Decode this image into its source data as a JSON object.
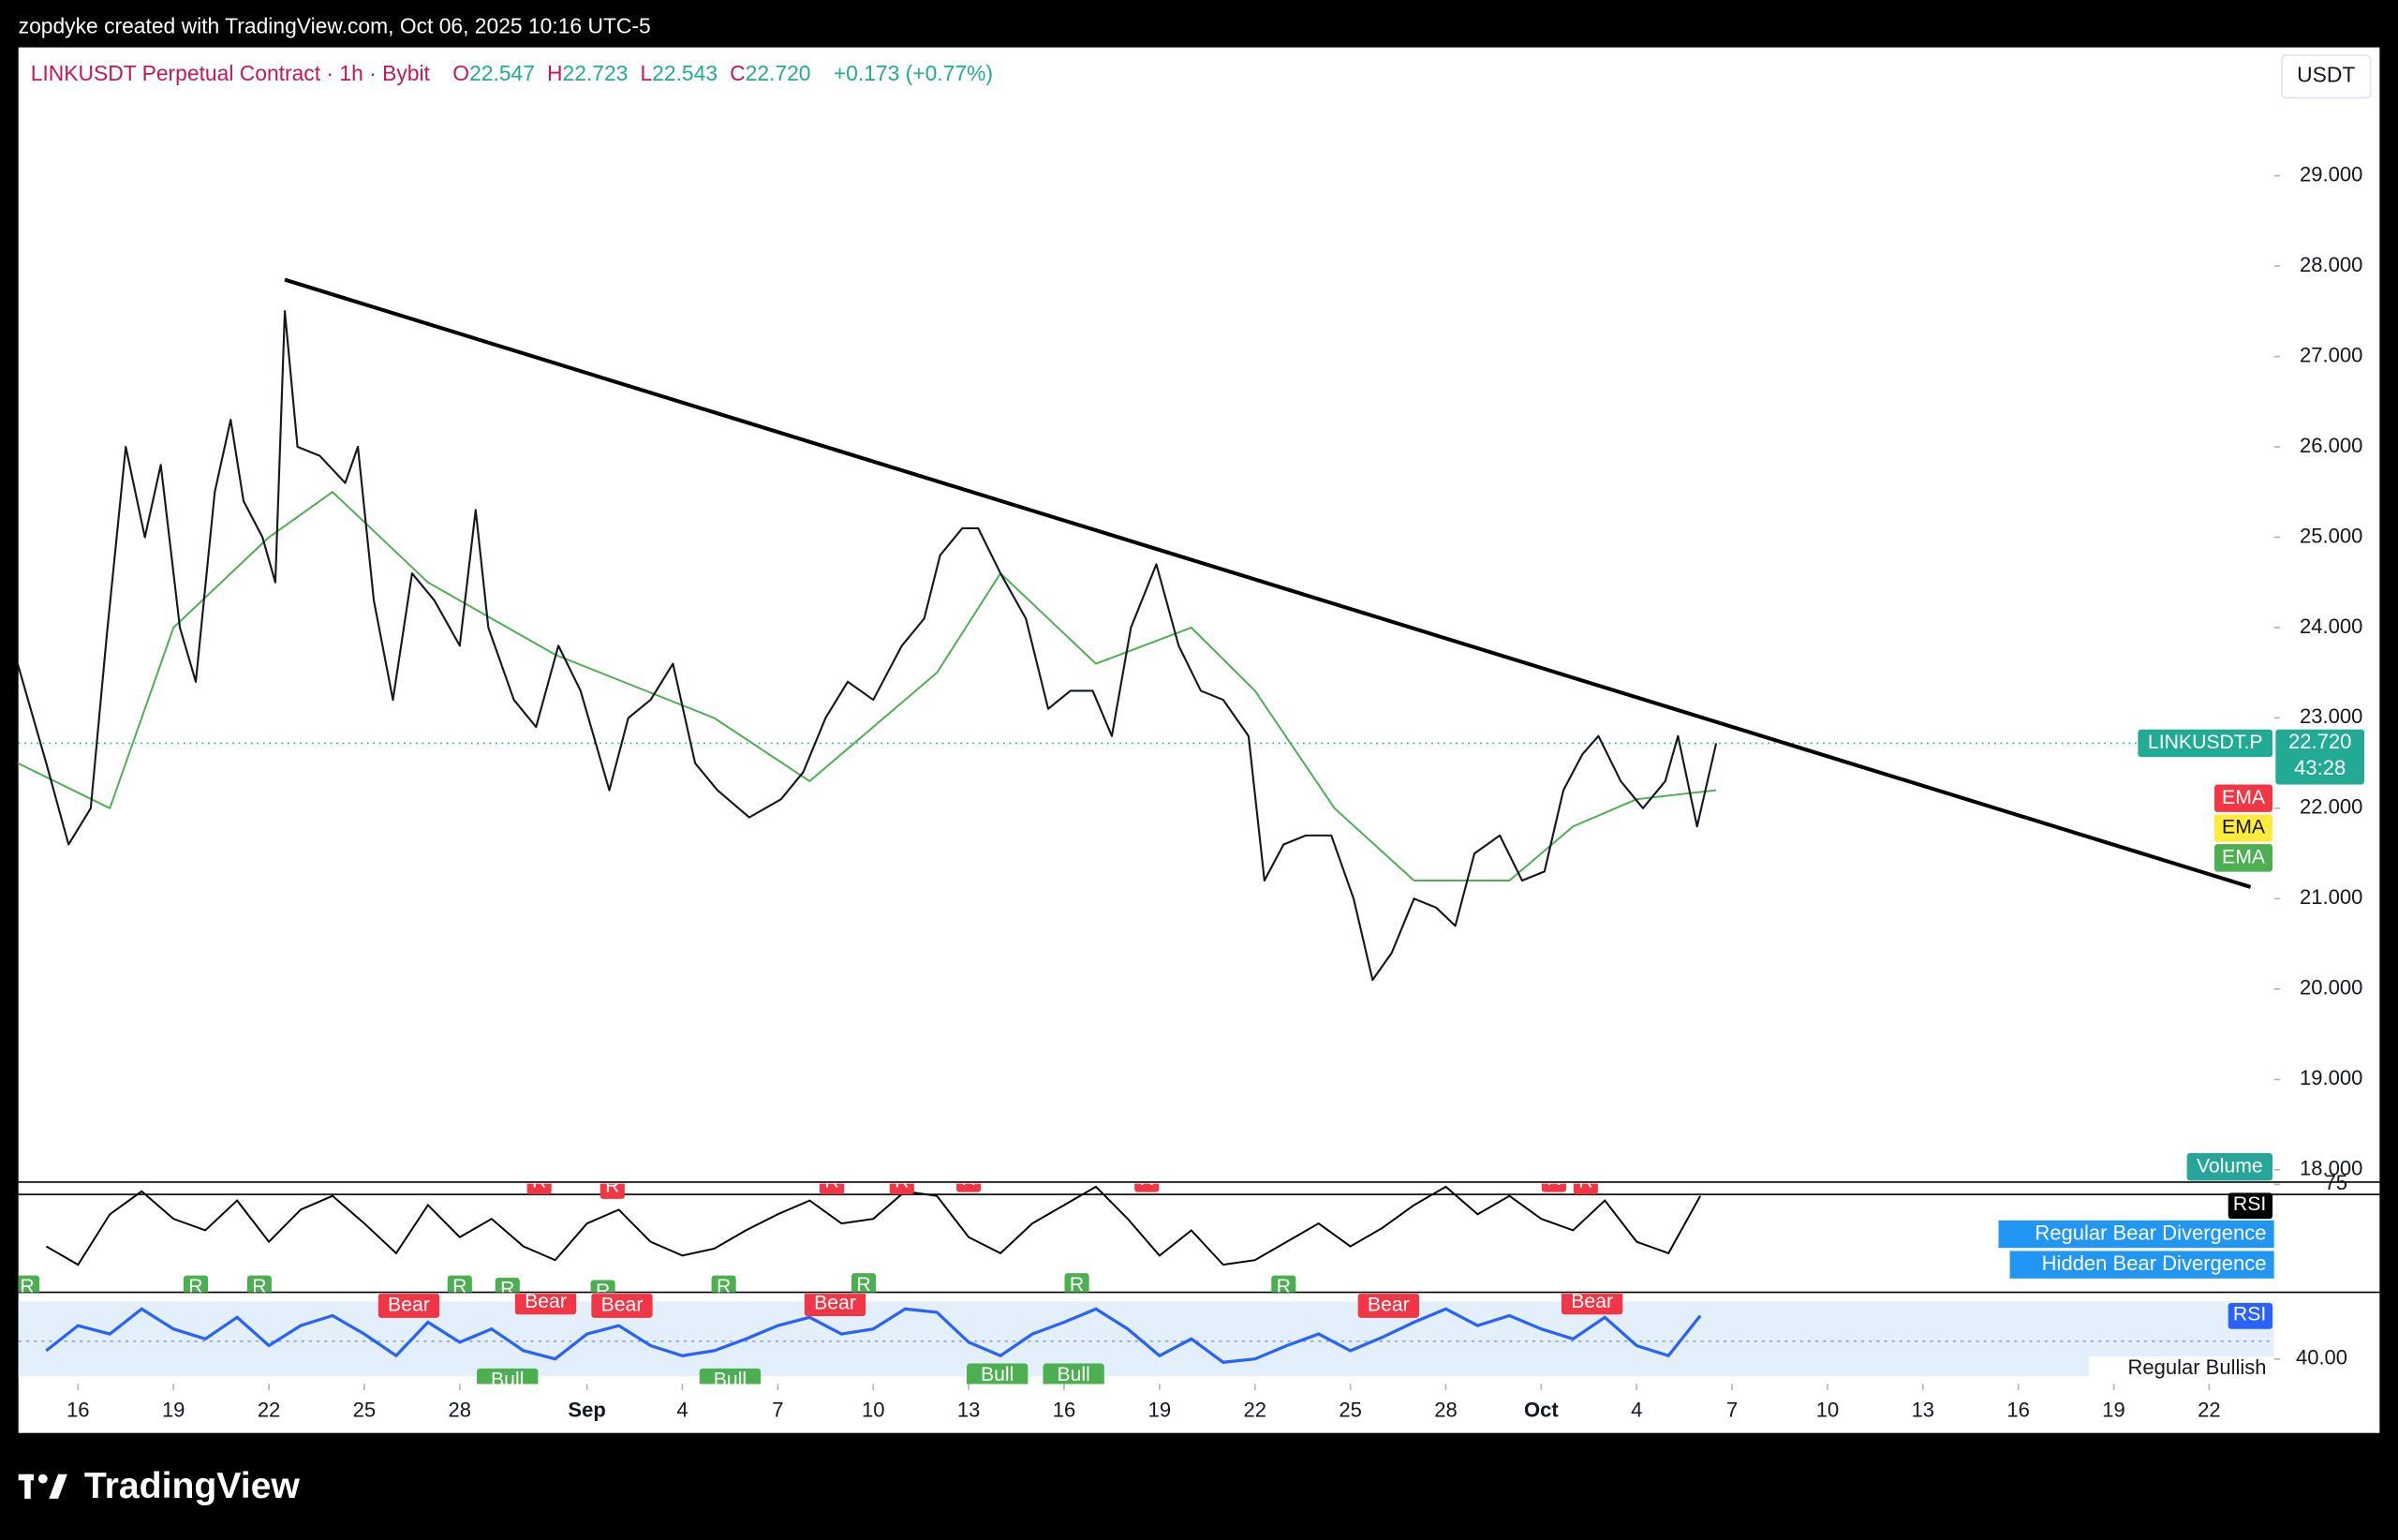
{
  "header": {
    "credit": "zopdyke created with TradingView.com, Oct 06, 2025 10:16 UTC-5",
    "symbol": "LINKUSDT Perpetual Contract · 1h · Bybit",
    "ohlc": [
      {
        "label": "O",
        "value": "22.547"
      },
      {
        "label": "H",
        "value": "22.723"
      },
      {
        "label": "L",
        "value": "22.543"
      },
      {
        "label": "C",
        "value": "22.720"
      }
    ],
    "change": "+0.173 (+0.77%)",
    "currency": "USDT"
  },
  "chart_data": {
    "type": "line",
    "grid": false,
    "xlim": [
      -1.875,
      69.04
    ],
    "ylim": [
      17.88,
      30.42
    ],
    "xticks": [
      {
        "value": 0,
        "label": "16"
      },
      {
        "value": 3,
        "label": "19"
      },
      {
        "value": 6,
        "label": "22"
      },
      {
        "value": 9,
        "label": "25"
      },
      {
        "value": 12,
        "label": "28"
      },
      {
        "value": 16,
        "label": "Sep"
      },
      {
        "value": 19,
        "label": "4"
      },
      {
        "value": 22,
        "label": "7"
      },
      {
        "value": 25,
        "label": "10"
      },
      {
        "value": 28,
        "label": "13"
      },
      {
        "value": 31,
        "label": "16"
      },
      {
        "value": 34,
        "label": "19"
      },
      {
        "value": 37,
        "label": "22"
      },
      {
        "value": 40,
        "label": "25"
      },
      {
        "value": 43,
        "label": "28"
      },
      {
        "value": 46,
        "label": "Oct"
      },
      {
        "value": 49,
        "label": "4"
      },
      {
        "value": 52,
        "label": "7"
      },
      {
        "value": 55,
        "label": "10"
      },
      {
        "value": 58,
        "label": "13"
      },
      {
        "value": 61,
        "label": "16"
      },
      {
        "value": 64,
        "label": "19"
      },
      {
        "value": 67,
        "label": "22"
      }
    ],
    "yticks": [
      {
        "value": 29,
        "label": "29.000"
      },
      {
        "value": 28,
        "label": "28.000"
      },
      {
        "value": 27,
        "label": "27.000"
      },
      {
        "value": 26,
        "label": "26.000"
      },
      {
        "value": 25,
        "label": "25.000"
      },
      {
        "value": 24,
        "label": "24.000"
      },
      {
        "value": 23,
        "label": "23.000"
      },
      {
        "value": 22,
        "label": "22.000"
      },
      {
        "value": 21,
        "label": "21.000"
      },
      {
        "value": 20,
        "label": "20.000"
      },
      {
        "value": 19,
        "label": "19.000"
      },
      {
        "value": 18,
        "label": "18.000"
      }
    ],
    "series": [
      {
        "name": "LINKUSDT.P",
        "color": "#131722",
        "x": [
          -1.9,
          -1.0,
          -0.3,
          0.4,
          0.9,
          1.5,
          2.1,
          2.6,
          3.2,
          3.7,
          4.3,
          4.8,
          5.2,
          5.8,
          6.2,
          6.5,
          6.9,
          7.6,
          8.4,
          8.8,
          9.3,
          9.9,
          10.5,
          11.2,
          12.0,
          12.5,
          12.9,
          13.7,
          14.4,
          15.1,
          15.8,
          16.7,
          17.3,
          18.0,
          18.7,
          19.4,
          20.1,
          21.1,
          22.1,
          22.8,
          23.5,
          24.2,
          25.0,
          25.9,
          26.6,
          27.1,
          27.8,
          28.3,
          29.0,
          29.8,
          30.5,
          31.2,
          31.9,
          32.5,
          33.1,
          33.9,
          34.6,
          35.3,
          36.0,
          36.8,
          37.3,
          37.9,
          38.6,
          39.4,
          40.1,
          40.7,
          41.3,
          42.0,
          42.7,
          43.3,
          43.9,
          44.7,
          45.4,
          46.1,
          46.7,
          47.3,
          47.8,
          48.5,
          49.2,
          49.9,
          50.3,
          50.9,
          51.5
        ],
        "values": [
          23.6,
          22.5,
          21.6,
          22.0,
          23.9,
          26.0,
          25.0,
          25.8,
          24.0,
          23.4,
          25.5,
          26.3,
          25.4,
          25.0,
          24.5,
          27.5,
          26.0,
          25.9,
          25.6,
          26.0,
          24.3,
          23.2,
          24.6,
          24.3,
          23.8,
          25.3,
          24.0,
          23.2,
          22.9,
          23.8,
          23.3,
          22.2,
          23.0,
          23.2,
          23.6,
          22.5,
          22.2,
          21.9,
          22.1,
          22.4,
          23.0,
          23.4,
          23.2,
          23.8,
          24.1,
          24.8,
          25.1,
          25.1,
          24.6,
          24.1,
          23.1,
          23.3,
          23.3,
          22.8,
          24.0,
          24.7,
          23.8,
          23.3,
          23.2,
          22.8,
          21.2,
          21.6,
          21.7,
          21.7,
          21.0,
          20.1,
          20.4,
          21.0,
          20.9,
          20.7,
          21.5,
          21.7,
          21.2,
          21.3,
          22.2,
          22.6,
          22.8,
          22.3,
          22.0,
          22.3,
          22.8,
          21.8,
          22.72
        ]
      },
      {
        "color": "#4caf50",
        "x": [
          -1.9,
          1,
          3,
          6,
          8,
          11,
          15,
          20,
          23,
          27,
          29,
          32,
          35,
          37,
          39.5,
          42,
          45,
          47,
          49,
          51.5
        ],
        "values": [
          22.5,
          22.0,
          24.0,
          25.0,
          25.5,
          24.5,
          23.7,
          23.0,
          22.3,
          23.5,
          24.6,
          23.6,
          24.0,
          23.3,
          22.0,
          21.2,
          21.2,
          21.8,
          22.1,
          22.2
        ]
      }
    ],
    "trendline": {
      "color": "#000000",
      "x": [
        6.5,
        68.3
      ],
      "values": [
        27.85,
        21.13
      ]
    },
    "last_price": {
      "value": 22.72,
      "label": "22.720",
      "countdown": "43:28",
      "color": "#22ab94"
    },
    "ema_labels": [
      {
        "text": "EMA",
        "color": "#f23645"
      },
      {
        "text": "EMA",
        "color": "#ffeb3b"
      },
      {
        "text": "EMA",
        "color": "#4caf50"
      }
    ],
    "volume_label": "Volume"
  },
  "rsi_panes": [
    {
      "label": "RSI",
      "color": "#000000",
      "ylim": [
        28,
        76
      ],
      "yticks": [
        75
      ],
      "x": [
        -1,
        0,
        1,
        2,
        3,
        4,
        5,
        6,
        7,
        8,
        9,
        10,
        11,
        12,
        13,
        14,
        15,
        16,
        17,
        18,
        19,
        20,
        21,
        22,
        23,
        24,
        25,
        26,
        27,
        28,
        29,
        30,
        31,
        32,
        33,
        34,
        35,
        36,
        37,
        38,
        39,
        40,
        41,
        42,
        43,
        44,
        45,
        46,
        47,
        48,
        49,
        50,
        51
      ],
      "values": [
        48,
        40,
        62,
        72,
        60,
        55,
        68,
        50,
        64,
        70,
        58,
        45,
        66,
        52,
        60,
        48,
        42,
        58,
        64,
        50,
        44,
        47,
        55,
        62,
        68,
        58,
        60,
        72,
        70,
        52,
        45,
        58,
        66,
        74,
        60,
        44,
        55,
        40,
        42,
        50,
        58,
        48,
        56,
        66,
        74,
        62,
        70,
        60,
        55,
        68,
        50,
        45,
        70
      ],
      "legend": [
        "Regular Bear Divergence",
        "Hidden Bear Divergence"
      ],
      "annotations": [
        {
          "text": "R",
          "x": 14.5,
          "value": 76,
          "color": "#f23645"
        },
        {
          "text": "R",
          "x": 16.8,
          "value": 74,
          "color": "#f23645"
        },
        {
          "text": "R",
          "x": 23.7,
          "value": 76,
          "color": "#f23645"
        },
        {
          "text": "R",
          "x": 25.9,
          "value": 76,
          "color": "#f23645"
        },
        {
          "text": "R",
          "x": 28.0,
          "value": 77,
          "color": "#f23645"
        },
        {
          "text": "R",
          "x": 33.6,
          "value": 77,
          "color": "#f23645"
        },
        {
          "text": "R",
          "x": 46.4,
          "value": 77,
          "color": "#f23645"
        },
        {
          "text": "R",
          "x": 47.4,
          "value": 76,
          "color": "#f23645"
        },
        {
          "text": "R",
          "x": -1.6,
          "value": 30,
          "color": "#4caf50"
        },
        {
          "text": "R",
          "x": 3.7,
          "value": 30,
          "color": "#4caf50"
        },
        {
          "text": "R",
          "x": 5.7,
          "value": 30,
          "color": "#4caf50"
        },
        {
          "text": "R",
          "x": 12.0,
          "value": 30,
          "color": "#4caf50"
        },
        {
          "text": "R",
          "x": 13.5,
          "value": 29,
          "color": "#4caf50"
        },
        {
          "text": "R",
          "x": 16.5,
          "value": 28,
          "color": "#4caf50"
        },
        {
          "text": "R",
          "x": 20.3,
          "value": 30,
          "color": "#4caf50"
        },
        {
          "text": "R",
          "x": 24.7,
          "value": 31,
          "color": "#4caf50"
        },
        {
          "text": "R",
          "x": 31.4,
          "value": 31,
          "color": "#4caf50"
        },
        {
          "text": "R",
          "x": 37.9,
          "value": 30,
          "color": "#4caf50"
        }
      ]
    },
    {
      "label": "RSI",
      "color": "#2962ff",
      "ylim": [
        25,
        80
      ],
      "yticks": [
        {
          "value": 40,
          "label": "40.00"
        }
      ],
      "x": [
        -1,
        0,
        1,
        2,
        3,
        4,
        5,
        6,
        7,
        8,
        9,
        10,
        11,
        12,
        13,
        14,
        15,
        16,
        17,
        18,
        19,
        20,
        21,
        22,
        23,
        24,
        25,
        26,
        27,
        28,
        29,
        30,
        31,
        32,
        33,
        34,
        35,
        36,
        37,
        38,
        39,
        40,
        41,
        42,
        43,
        44,
        45,
        46,
        47,
        48,
        49,
        50,
        51
      ],
      "values": [
        45,
        60,
        55,
        70,
        58,
        52,
        65,
        48,
        60,
        66,
        55,
        42,
        62,
        50,
        58,
        45,
        40,
        55,
        60,
        48,
        42,
        45,
        52,
        60,
        65,
        55,
        58,
        70,
        68,
        50,
        42,
        55,
        62,
        70,
        58,
        42,
        52,
        38,
        40,
        48,
        55,
        45,
        53,
        62,
        70,
        60,
        66,
        58,
        52,
        65,
        48,
        42,
        66
      ],
      "legend": [
        "Regular Bullish"
      ],
      "annotations": [
        {
          "text": "Bear",
          "x": 10.4,
          "value": 72,
          "color": "#f23645"
        },
        {
          "text": "Bear",
          "x": 14.7,
          "value": 74,
          "color": "#f23645"
        },
        {
          "text": "Bear",
          "x": 17.1,
          "value": 72,
          "color": "#f23645"
        },
        {
          "text": "Bear",
          "x": 23.8,
          "value": 73,
          "color": "#f23645"
        },
        {
          "text": "Bear",
          "x": 41.2,
          "value": 72,
          "color": "#f23645"
        },
        {
          "text": "Bear",
          "x": 47.6,
          "value": 74,
          "color": "#f23645"
        },
        {
          "text": "Bull",
          "x": 13.5,
          "value": 27,
          "color": "#4caf50"
        },
        {
          "text": "Bull",
          "x": 20.5,
          "value": 27,
          "color": "#4caf50"
        },
        {
          "text": "Bull",
          "x": 28.9,
          "value": 30,
          "color": "#4caf50"
        },
        {
          "text": "Bull",
          "x": 31.3,
          "value": 30,
          "color": "#4caf50"
        }
      ]
    }
  ],
  "footer": {
    "logo": "TradingView"
  }
}
